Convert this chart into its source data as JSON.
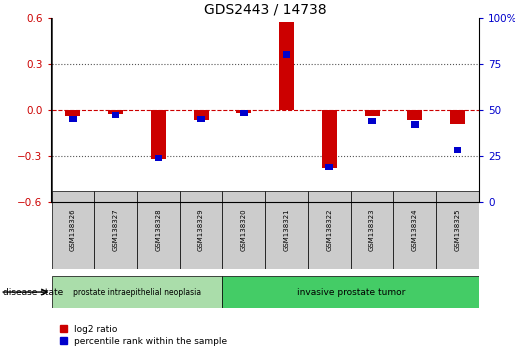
{
  "title": "GDS2443 / 14738",
  "samples": [
    "GSM138326",
    "GSM138327",
    "GSM138328",
    "GSM138329",
    "GSM138320",
    "GSM138321",
    "GSM138322",
    "GSM138323",
    "GSM138324",
    "GSM138325"
  ],
  "log2_ratio": [
    -0.04,
    -0.03,
    -0.32,
    -0.07,
    -0.02,
    0.57,
    -0.38,
    -0.04,
    -0.07,
    -0.09
  ],
  "percentile_rank": [
    45,
    47,
    24,
    45,
    48,
    80,
    19,
    44,
    42,
    28
  ],
  "ylim_left": [
    -0.6,
    0.6
  ],
  "ylim_right": [
    0,
    100
  ],
  "yticks_left": [
    -0.6,
    -0.3,
    0.0,
    0.3,
    0.6
  ],
  "yticks_right": [
    0,
    25,
    50,
    75,
    100
  ],
  "bar_color_red": "#cc0000",
  "bar_color_blue": "#0000cc",
  "dashed_line_color": "#cc0000",
  "dotted_line_color": "#555555",
  "group1_label": "prostate intraepithelial neoplasia",
  "group2_label": "invasive prostate tumor",
  "group1_color": "#aaddaa",
  "group2_color": "#44cc66",
  "group1_count": 4,
  "group2_count": 6,
  "disease_state_label": "disease state",
  "legend_red_label": "log2 ratio",
  "legend_blue_label": "percentile rank within the sample",
  "red_bar_width": 0.35,
  "blue_bar_width": 0.18,
  "blue_bar_height": 0.04
}
